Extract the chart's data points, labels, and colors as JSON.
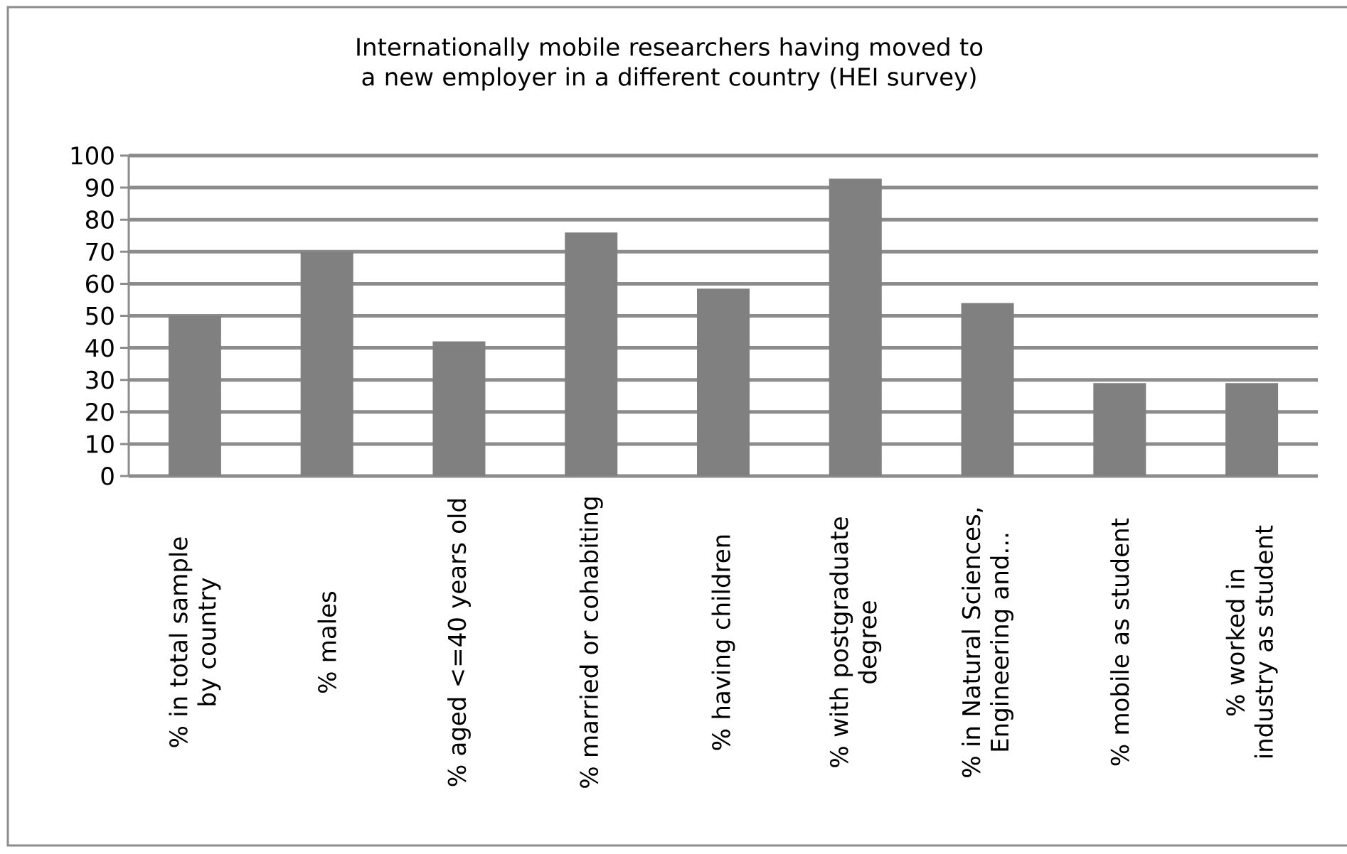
{
  "chart_data": {
    "type": "bar",
    "title": "Internationally mobile researchers having moved to a new employer in a different country (HEI survey)",
    "categories": [
      "% in total sample by country",
      "% males",
      "% aged <=40 years old",
      "% married or cohabiting",
      "% having children",
      "% with postgraduate degree",
      "% in Natural Sciences, Engineering and...",
      "% mobile as student",
      "% worked in industry as student"
    ],
    "values": [
      50,
      70,
      42,
      76,
      58.5,
      92.8,
      54,
      29,
      29
    ],
    "color": "#808080",
    "ylim": [
      0,
      100
    ],
    "yticks": [
      0,
      10,
      20,
      30,
      40,
      50,
      60,
      70,
      80,
      90,
      100
    ],
    "grid": "y"
  }
}
